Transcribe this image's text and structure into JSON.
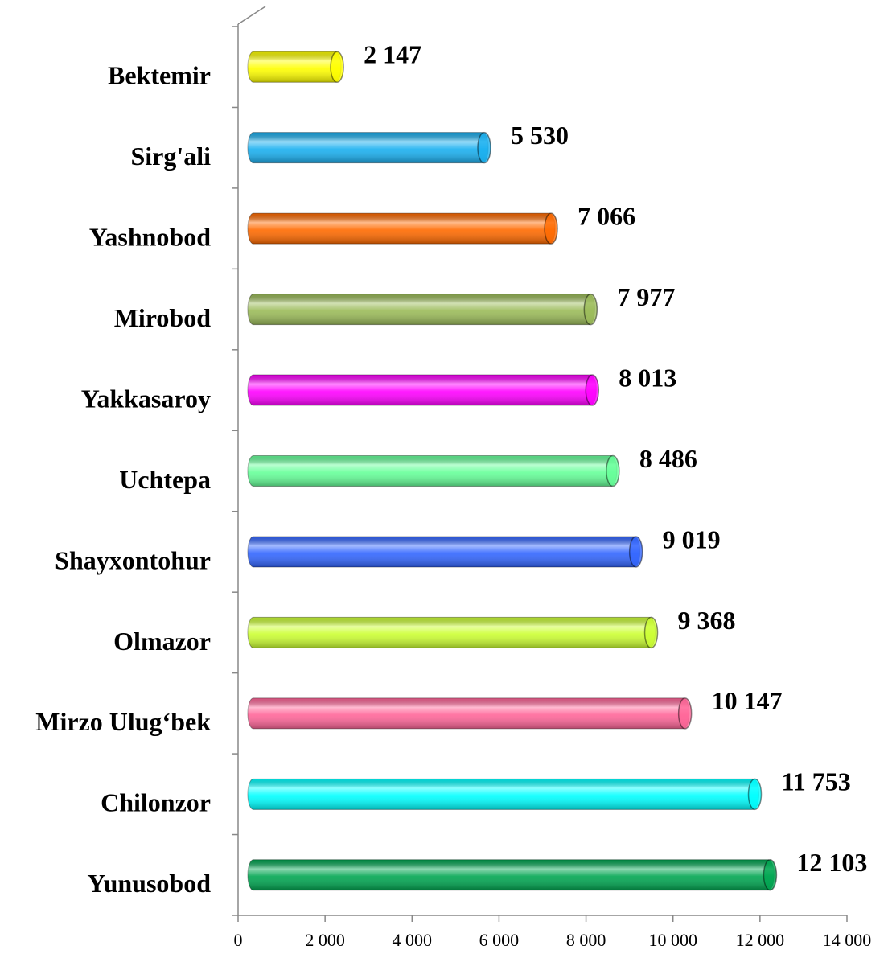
{
  "chart_data": {
    "type": "bar",
    "orientation": "horizontal",
    "categories": [
      "Bektemir",
      "Sirg'ali",
      "Yashnobod",
      "Mirobod",
      "Yakkasaroy",
      "Uchtepa",
      "Shayxontohur",
      "Olmazor",
      "Mirzo Ulug‘bek",
      "Chilonzor",
      "Yunusobod"
    ],
    "values": [
      2147,
      5530,
      7066,
      7977,
      8013,
      8486,
      9019,
      9368,
      10147,
      11753,
      12103
    ],
    "value_labels": [
      "2 147",
      "5 530",
      "7 066",
      "7 977",
      "8 013",
      "8 486",
      "9 019",
      "9 368",
      "10 147",
      "11 753",
      "12 103"
    ],
    "colors": [
      "#ffff00",
      "#1ab0f0",
      "#ff6a00",
      "#9bbb59",
      "#ff00ff",
      "#66ff99",
      "#3366ff",
      "#ccff33",
      "#ff6699",
      "#00ffff",
      "#00a651"
    ],
    "xlim": [
      0,
      14000
    ],
    "xticks": [
      0,
      {
        "value": 2000,
        "label": "2 000"
      },
      {
        "value": 4000,
        "label": "4 000"
      },
      {
        "value": 6000,
        "label": "6 000"
      },
      {
        "value": 8000,
        "label": "8 000"
      },
      {
        "value": 10000,
        "label": "10 000"
      },
      {
        "value": 12000,
        "label": "12 000"
      },
      {
        "value": 14000,
        "label": "14 000"
      }
    ]
  }
}
